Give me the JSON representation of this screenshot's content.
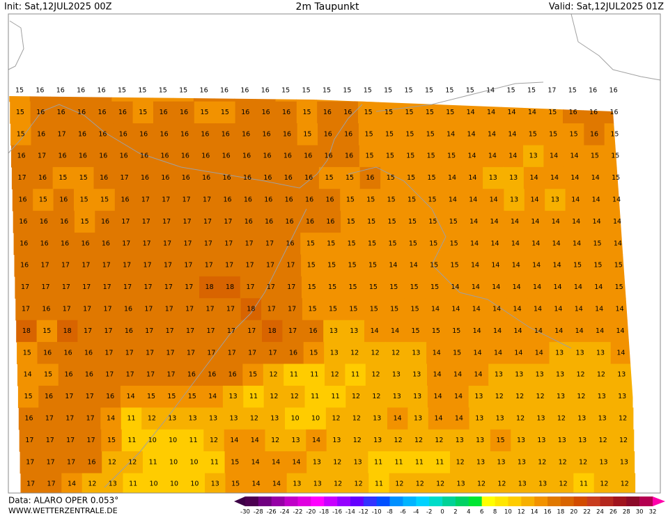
{
  "header": {
    "init": "Init: Sat,12JUL2025 00Z",
    "title": "2m Taupunkt",
    "valid": "Valid: Sat,12JUL2025 01Z"
  },
  "map": {
    "rows": [
      [
        15,
        16,
        16,
        16,
        16,
        15,
        15,
        15,
        15,
        16,
        16,
        16,
        16,
        15,
        15,
        15,
        15,
        15,
        15,
        15,
        15,
        15,
        15,
        14,
        15,
        15,
        17,
        15,
        16,
        16
      ],
      [
        15,
        16,
        16,
        16,
        16,
        16,
        15,
        16,
        16,
        15,
        15,
        16,
        16,
        16,
        15,
        16,
        16,
        15,
        15,
        15,
        15,
        15,
        14,
        14,
        14,
        14,
        15,
        16,
        16,
        16
      ],
      [
        15,
        16,
        17,
        16,
        16,
        16,
        16,
        16,
        16,
        16,
        16,
        16,
        16,
        16,
        15,
        16,
        16,
        15,
        15,
        15,
        15,
        14,
        14,
        14,
        14,
        15,
        15,
        15,
        16,
        15
      ],
      [
        16,
        17,
        16,
        16,
        16,
        16,
        16,
        16,
        16,
        16,
        16,
        16,
        16,
        16,
        16,
        16,
        16,
        15,
        15,
        15,
        15,
        15,
        14,
        14,
        14,
        13,
        14,
        14,
        15,
        15
      ],
      [
        17,
        16,
        15,
        15,
        16,
        17,
        16,
        16,
        16,
        16,
        16,
        16,
        16,
        16,
        16,
        15,
        15,
        16,
        15,
        15,
        15,
        14,
        14,
        13,
        13,
        14,
        14,
        14,
        14,
        15
      ],
      [
        16,
        15,
        16,
        15,
        15,
        16,
        17,
        17,
        17,
        17,
        16,
        16,
        16,
        16,
        16,
        16,
        15,
        15,
        15,
        15,
        15,
        14,
        14,
        14,
        13,
        14,
        13,
        14,
        14,
        14
      ],
      [
        16,
        16,
        16,
        15,
        16,
        17,
        17,
        17,
        17,
        17,
        17,
        16,
        16,
        16,
        16,
        16,
        15,
        15,
        15,
        15,
        15,
        15,
        14,
        14,
        14,
        14,
        14,
        14,
        14,
        14
      ],
      [
        16,
        16,
        16,
        16,
        16,
        17,
        17,
        17,
        17,
        17,
        17,
        17,
        17,
        16,
        15,
        15,
        15,
        15,
        15,
        15,
        15,
        15,
        14,
        14,
        14,
        14,
        14,
        14,
        15,
        14
      ],
      [
        16,
        17,
        17,
        17,
        17,
        17,
        17,
        17,
        17,
        17,
        17,
        17,
        17,
        17,
        15,
        15,
        15,
        15,
        14,
        14,
        15,
        15,
        14,
        14,
        14,
        14,
        14,
        15,
        15,
        15
      ],
      [
        17,
        17,
        17,
        17,
        17,
        17,
        17,
        17,
        17,
        18,
        18,
        17,
        17,
        17,
        15,
        15,
        15,
        15,
        15,
        15,
        15,
        14,
        14,
        14,
        14,
        14,
        14,
        14,
        14,
        15
      ],
      [
        17,
        16,
        17,
        17,
        17,
        16,
        17,
        17,
        17,
        17,
        17,
        18,
        17,
        17,
        15,
        15,
        15,
        15,
        15,
        15,
        14,
        14,
        14,
        14,
        14,
        14,
        14,
        14,
        14,
        14
      ],
      [
        18,
        15,
        18,
        17,
        17,
        16,
        17,
        17,
        17,
        17,
        17,
        17,
        18,
        17,
        16,
        13,
        13,
        14,
        14,
        15,
        15,
        15,
        14,
        14,
        14,
        14,
        14,
        14,
        14,
        14
      ],
      [
        15,
        16,
        16,
        16,
        17,
        17,
        17,
        17,
        17,
        17,
        17,
        17,
        17,
        16,
        15,
        13,
        12,
        12,
        12,
        13,
        14,
        15,
        14,
        14,
        14,
        14,
        13,
        13,
        13,
        14
      ],
      [
        14,
        15,
        16,
        16,
        17,
        17,
        17,
        17,
        16,
        16,
        16,
        15,
        12,
        11,
        11,
        12,
        11,
        12,
        13,
        13,
        14,
        14,
        14,
        13,
        13,
        13,
        13,
        12,
        12,
        13
      ],
      [
        15,
        16,
        17,
        17,
        16,
        14,
        15,
        15,
        15,
        14,
        13,
        11,
        12,
        12,
        11,
        11,
        12,
        12,
        13,
        13,
        14,
        14,
        13,
        12,
        12,
        12,
        13,
        12,
        13,
        13
      ],
      [
        16,
        17,
        17,
        17,
        14,
        11,
        12,
        13,
        13,
        13,
        13,
        12,
        13,
        10,
        10,
        12,
        12,
        13,
        14,
        13,
        14,
        14,
        13,
        13,
        12,
        13,
        12,
        13,
        13,
        12
      ],
      [
        17,
        17,
        17,
        17,
        15,
        11,
        10,
        10,
        11,
        12,
        14,
        14,
        12,
        13,
        14,
        13,
        12,
        13,
        12,
        12,
        12,
        13,
        13,
        15,
        13,
        13,
        13,
        13,
        12,
        12
      ],
      [
        17,
        17,
        17,
        16,
        12,
        12,
        11,
        10,
        10,
        11,
        15,
        14,
        14,
        14,
        13,
        12,
        13,
        11,
        11,
        11,
        11,
        12,
        13,
        13,
        13,
        12,
        12,
        12,
        13,
        13
      ],
      [
        17,
        17,
        14,
        12,
        13,
        11,
        10,
        10,
        10,
        13,
        15,
        14,
        14,
        13,
        13,
        12,
        12,
        11,
        12,
        12,
        12,
        13,
        12,
        12,
        13,
        13,
        12,
        11,
        12,
        12
      ]
    ]
  },
  "legend": {
    "ticks": [
      -30,
      -28,
      -26,
      -24,
      -22,
      -20,
      -18,
      -16,
      -14,
      -12,
      -10,
      -8,
      -6,
      -4,
      -2,
      0,
      2,
      4,
      6,
      8,
      10,
      12,
      14,
      16,
      18,
      20,
      22,
      24,
      26,
      28,
      30,
      32
    ],
    "colors": [
      "#4b0050",
      "#700080",
      "#9600a6",
      "#c000c8",
      "#e000e0",
      "#ff00ff",
      "#c800ff",
      "#9600ff",
      "#6400ff",
      "#3232ff",
      "#0050ff",
      "#0090ff",
      "#00b4ff",
      "#00d2ff",
      "#00dcc8",
      "#00d296",
      "#00d264",
      "#00e632",
      "#ffff00",
      "#ffe600",
      "#ffcc00",
      "#f7b000",
      "#f29200",
      "#e07800",
      "#d86400",
      "#d24b00",
      "#c83c1e",
      "#b4281e",
      "#a0141e",
      "#8c0a28",
      "#b40050"
    ],
    "arrow_colors": [
      "#3c0046",
      "#ff00aa"
    ]
  },
  "footer": {
    "source": "Data: ALARO OPER 0.053°",
    "website": "WWW.WETTERZENTRALE.DE"
  }
}
